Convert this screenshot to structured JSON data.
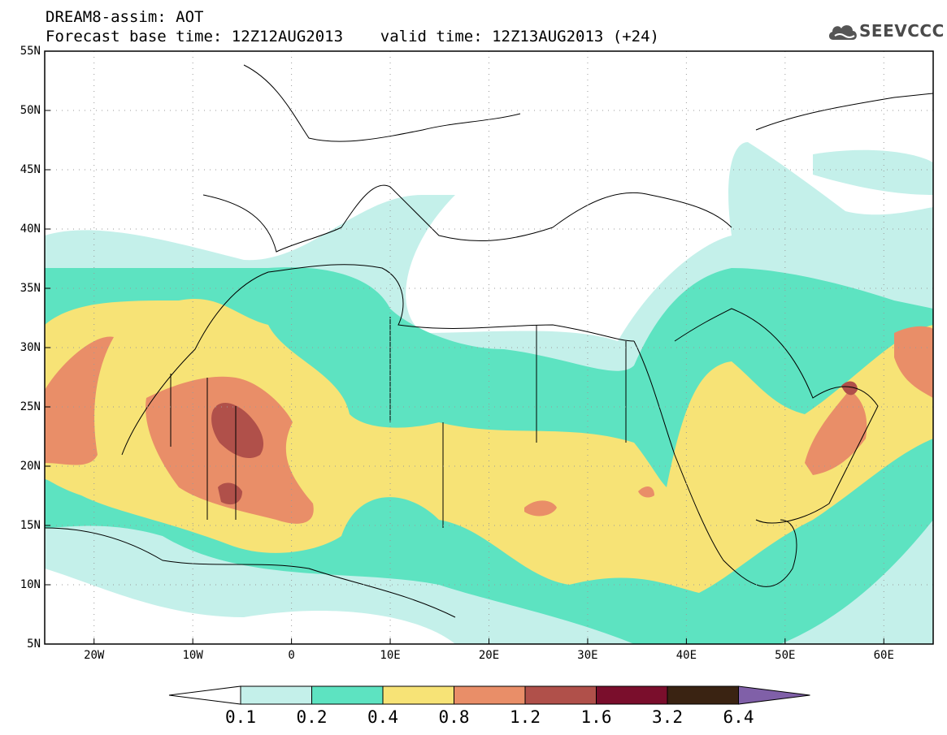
{
  "header": {
    "line1": "DREAM8-assim: AOT",
    "line2": "Forecast base time: 12Z12AUG2013    valid time: 12Z13AUG2013 (+24)"
  },
  "logo": {
    "text": "SEEVCCC",
    "icon": "cloud-icon"
  },
  "map": {
    "lat_labels": [
      "55N",
      "50N",
      "45N",
      "40N",
      "35N",
      "30N",
      "25N",
      "20N",
      "15N",
      "10N",
      "5N"
    ],
    "lon_labels": [
      "20W",
      "10W",
      "0",
      "10E",
      "20E",
      "30E",
      "40E",
      "50E",
      "60E"
    ],
    "lon_range": [
      -25,
      65
    ],
    "lat_range": [
      5,
      55
    ],
    "grid": true
  },
  "colorbar": {
    "labels": [
      "0.1",
      "0.2",
      "0.4",
      "0.8",
      "1.2",
      "1.6",
      "3.2",
      "6.4"
    ],
    "colors": [
      "#ffffff",
      "#c4f0ea",
      "#5de3c1",
      "#f7e376",
      "#e98e68",
      "#b0504a",
      "#7a0e2c",
      "#3a2312",
      "#8060a8"
    ]
  }
}
